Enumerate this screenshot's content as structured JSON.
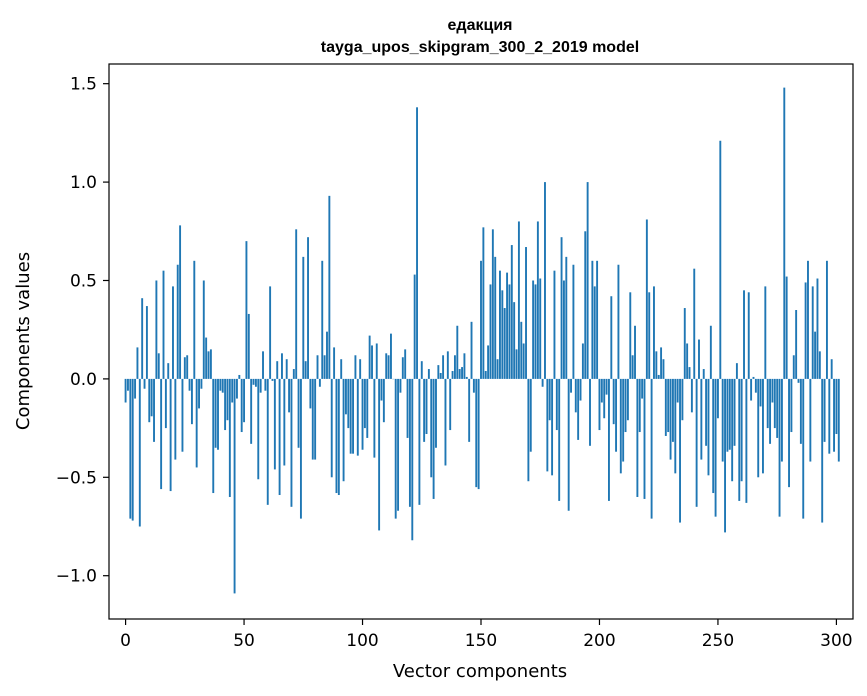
{
  "chart_data": {
    "type": "bar",
    "title": "едакция",
    "subtitle": "tayga_upos_skipgram_300_2_2019 model",
    "xlabel": "Vector components",
    "ylabel": "Components values",
    "xlim": [
      -7,
      307
    ],
    "ylim": [
      -1.22,
      1.6
    ],
    "xticks": [
      0,
      50,
      100,
      150,
      200,
      250,
      300
    ],
    "yticks": [
      -1.0,
      -0.5,
      0.0,
      0.5,
      1.0,
      1.5
    ],
    "ytick_labels": [
      "−1.0",
      "−0.5",
      "0.0",
      "0.5",
      "1.0",
      "1.5"
    ],
    "grid": false,
    "bar_color": "#1f77b4",
    "values": [
      -0.12,
      -0.06,
      -0.71,
      -0.72,
      -0.1,
      0.16,
      -0.75,
      0.41,
      -0.05,
      0.37,
      -0.22,
      -0.19,
      -0.32,
      0.5,
      0.13,
      -0.56,
      0.55,
      -0.25,
      0.08,
      -0.57,
      0.47,
      -0.41,
      0.58,
      0.78,
      -0.37,
      0.11,
      0.12,
      -0.06,
      -0.23,
      0.6,
      -0.45,
      -0.15,
      -0.05,
      0.5,
      0.21,
      0.14,
      0.15,
      -0.58,
      -0.35,
      -0.36,
      -0.06,
      -0.07,
      -0.26,
      -0.21,
      -0.6,
      -0.12,
      -1.09,
      -0.1,
      0.02,
      -0.27,
      -0.22,
      0.7,
      0.33,
      -0.33,
      -0.03,
      -0.04,
      -0.51,
      -0.07,
      0.14,
      -0.06,
      -0.64,
      0.47,
      -0.01,
      -0.46,
      0.09,
      -0.59,
      0.13,
      -0.44,
      0.1,
      -0.17,
      -0.65,
      0.05,
      0.76,
      -0.35,
      -0.71,
      0.62,
      0.09,
      0.72,
      -0.15,
      -0.41,
      -0.41,
      0.12,
      -0.04,
      0.6,
      0.12,
      0.24,
      0.93,
      -0.5,
      0.16,
      -0.58,
      -0.59,
      0.1,
      -0.52,
      -0.18,
      -0.25,
      -0.38,
      -0.38,
      0.12,
      -0.39,
      0.1,
      -0.36,
      -0.25,
      -0.3,
      0.22,
      0.17,
      -0.4,
      0.18,
      -0.77,
      -0.11,
      -0.22,
      0.13,
      0.12,
      0.23,
      0.0,
      -0.71,
      -0.67,
      -0.07,
      0.11,
      0.15,
      -0.3,
      -0.65,
      -0.82,
      0.53,
      1.38,
      -0.64,
      0.09,
      -0.32,
      -0.28,
      0.05,
      -0.5,
      -0.61,
      -0.35,
      0.07,
      0.03,
      0.12,
      -0.44,
      0.14,
      -0.26,
      0.04,
      0.12,
      0.27,
      0.05,
      0.06,
      0.13,
      0.01,
      -0.32,
      0.29,
      -0.07,
      -0.55,
      -0.56,
      0.6,
      0.77,
      0.04,
      0.17,
      0.48,
      0.76,
      0.62,
      0.1,
      0.55,
      0.45,
      0.36,
      0.54,
      0.48,
      0.68,
      0.39,
      0.15,
      0.8,
      0.29,
      0.18,
      0.67,
      -0.52,
      -0.37,
      0.5,
      0.48,
      0.8,
      0.51,
      -0.04,
      1.0,
      -0.47,
      -0.21,
      -0.49,
      0.55,
      -0.26,
      -0.62,
      0.72,
      0.5,
      0.62,
      -0.67,
      -0.07,
      0.58,
      -0.17,
      -0.31,
      -0.11,
      0.18,
      0.75,
      1.0,
      -0.34,
      0.6,
      0.47,
      0.6,
      -0.26,
      -0.12,
      -0.2,
      -0.08,
      -0.62,
      0.42,
      -0.23,
      -0.37,
      0.58,
      -0.48,
      -0.42,
      -0.27,
      -0.21,
      0.44,
      0.12,
      0.27,
      -0.6,
      -0.27,
      -0.1,
      -0.61,
      0.81,
      0.44,
      -0.71,
      0.47,
      0.14,
      0.02,
      0.16,
      0.1,
      -0.29,
      -0.27,
      -0.41,
      -0.32,
      -0.48,
      -0.12,
      -0.73,
      -0.21,
      0.36,
      0.18,
      0.06,
      -0.17,
      0.56,
      -0.65,
      0.2,
      -0.41,
      0.05,
      -0.34,
      -0.49,
      0.27,
      -0.58,
      -0.7,
      -0.2,
      1.21,
      -0.42,
      -0.78,
      -0.37,
      -0.36,
      -0.52,
      -0.34,
      0.08,
      -0.62,
      -0.52,
      0.45,
      -0.63,
      0.44,
      -0.11,
      0.01,
      -0.07,
      -0.5,
      -0.14,
      -0.48,
      0.47,
      -0.25,
      -0.33,
      -0.12,
      -0.25,
      -0.3,
      -0.7,
      -0.42,
      1.48,
      0.52,
      -0.55,
      -0.27,
      0.12,
      0.35,
      -0.02,
      -0.33,
      -0.71,
      0.49,
      0.6,
      -0.42,
      0.47,
      0.24,
      0.51,
      0.14,
      -0.73,
      -0.32,
      0.6,
      -0.38,
      0.1,
      -0.37,
      -0.28,
      -0.42
    ]
  }
}
